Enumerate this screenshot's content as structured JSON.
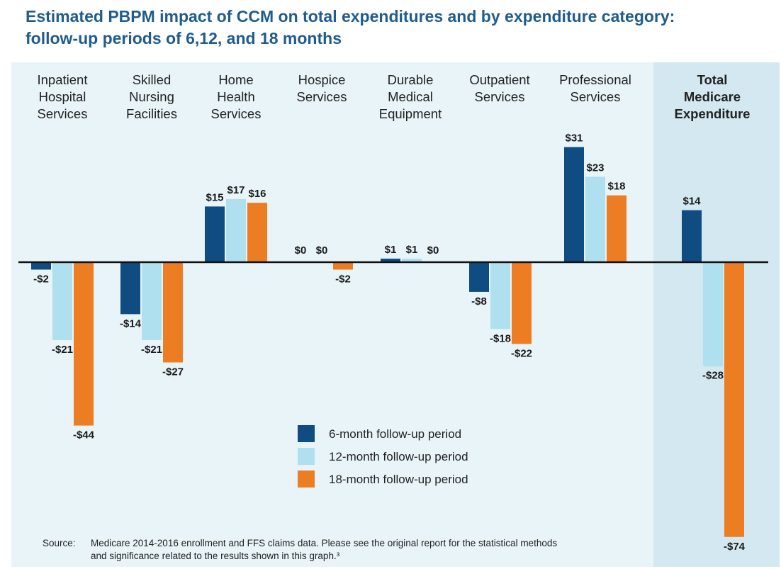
{
  "title_lines": [
    "Estimated PBPM impact of CCM on total expenditures and by expenditure category:",
    "follow-up periods of 6,12, and 18 months"
  ],
  "colors": {
    "title": "#1f5c8e",
    "panel_bg": "#e9f4f8",
    "total_bg": "#d3e8f0",
    "series_6": "#0f4c81",
    "series_12": "#aee0ef",
    "series_18": "#ed7d23"
  },
  "chart_data": {
    "type": "bar",
    "categories": [
      "Inpatient Hospital Services",
      "Skilled Nursing Facilities",
      "Home Health Services",
      "Hospice Services",
      "Durable Medical Equipment",
      "Outpatient Services",
      "Professional Services",
      "Total Medicare Expenditure"
    ],
    "category_label_lines": [
      [
        "Inpatient",
        "Hospital",
        "Services"
      ],
      [
        "Skilled",
        "Nursing",
        "Facilities"
      ],
      [
        "Home",
        "Health",
        "Services"
      ],
      [
        "Hospice",
        "Services"
      ],
      [
        "Durable",
        "Medical",
        "Equipment"
      ],
      [
        "Outpatient",
        "Services"
      ],
      [
        "Professional",
        "Services"
      ],
      [
        "Total",
        "Medicare",
        "Expenditure"
      ]
    ],
    "bold_category": "Total Medicare Expenditure",
    "series": [
      {
        "name": "6-month follow-up period",
        "values": [
          -2,
          -14,
          15,
          0,
          1,
          -8,
          31,
          14
        ],
        "labels": [
          "-$2",
          "-$14",
          "$15",
          "$0",
          "$1",
          "-$8",
          "$31",
          "$14"
        ]
      },
      {
        "name": "12-month follow-up period",
        "values": [
          -21,
          -21,
          17,
          0,
          1,
          -18,
          23,
          -28
        ],
        "labels": [
          "-$21",
          "-$21",
          "$17",
          "$0",
          "$1",
          "-$18",
          "$23",
          "-$28"
        ]
      },
      {
        "name": "18-month follow-up period",
        "values": [
          -44,
          -27,
          16,
          -2,
          0,
          -22,
          18,
          -74
        ],
        "labels": [
          "-$44",
          "-$27",
          "$16",
          "-$2",
          "$0",
          "-$22",
          "$18",
          "-$74"
        ]
      }
    ],
    "legend_position": "bottom-center",
    "grid": false
  },
  "legend": [
    {
      "label": "6-month follow-up period",
      "color_key": "series_6"
    },
    {
      "label": "12-month follow-up period",
      "color_key": "series_12"
    },
    {
      "label": "18-month follow-up period",
      "color_key": "series_18"
    }
  ],
  "source": {
    "label": "Source:",
    "text": "Medicare 2014-2016 enrollment and FFS claims data.  Please see the original report for the statistical methods and significance related to the results shown in this graph.³"
  }
}
